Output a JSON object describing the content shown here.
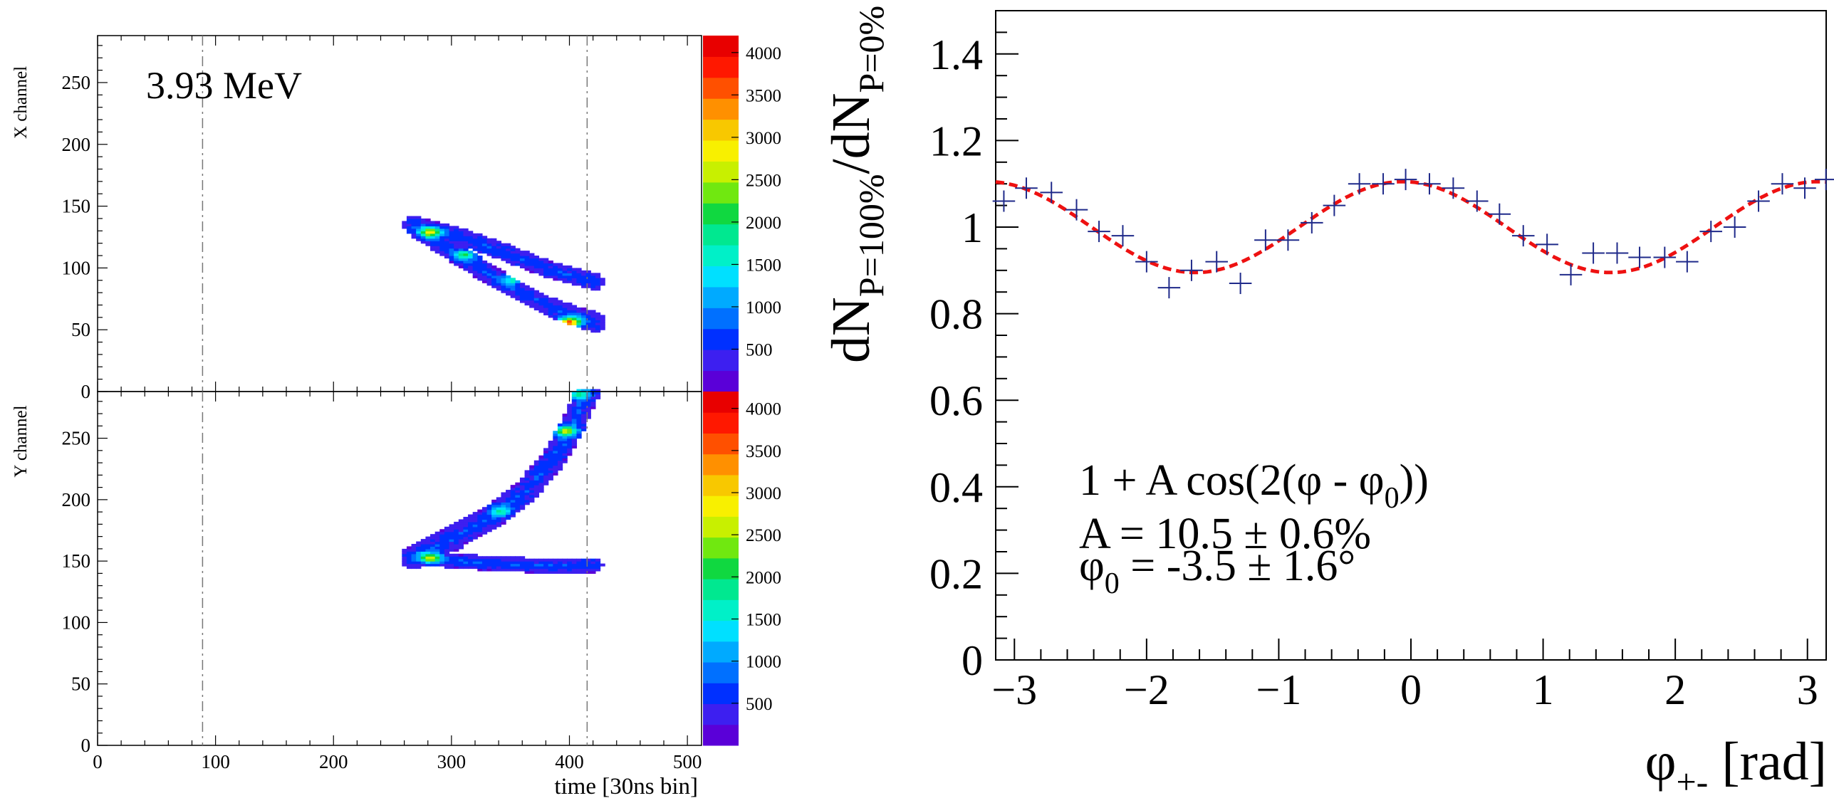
{
  "chart_data": [
    {
      "type": "heatmap",
      "panel": "top-left",
      "annotation": "3.93 MeV",
      "xlabel": "",
      "ylabel": "X channel",
      "xlim": [
        0,
        512
      ],
      "ylim": [
        0,
        288
      ],
      "x_ticks": [
        0,
        100,
        200,
        300,
        400,
        500
      ],
      "x_tick_labels": [
        "",
        "",
        "",
        "",
        "",
        ""
      ],
      "y_ticks": [
        0,
        50,
        100,
        150,
        200,
        250
      ],
      "y_tick_labels": [
        "0",
        "50",
        "100",
        "150",
        "200",
        "250"
      ],
      "dashed_vertical_lines_x": [
        89,
        415
      ],
      "color_scale": {
        "ticks": [
          500,
          1000,
          1500,
          2000,
          2500,
          3000,
          3500,
          4000
        ],
        "tick_labels": [
          "500",
          "1000",
          "1500",
          "2000",
          "2500",
          "3000",
          "3500",
          "4000"
        ],
        "max": 4200
      },
      "tracks": [
        {
          "points": [
            [
              265,
              134
            ],
            [
              300,
              126
            ],
            [
              340,
              113
            ],
            [
              380,
              98
            ],
            [
              420,
              88
            ]
          ],
          "width": 7
        },
        {
          "points": [
            [
              265,
              134
            ],
            [
              300,
              112
            ],
            [
              340,
              88
            ],
            [
              380,
              68
            ],
            [
              420,
              55
            ]
          ],
          "width": 8
        }
      ],
      "hotspots": [
        [
          280,
          128,
          2200
        ],
        [
          310,
          110,
          1400
        ],
        [
          350,
          90,
          1200
        ],
        [
          398,
          55,
          3300
        ]
      ]
    },
    {
      "type": "heatmap",
      "panel": "bottom-left",
      "xlabel": "time [30ns bin]",
      "ylabel": "Y channel",
      "xlim": [
        0,
        512
      ],
      "ylim": [
        0,
        288
      ],
      "x_ticks": [
        0,
        100,
        200,
        300,
        400,
        500
      ],
      "x_tick_labels": [
        "0",
        "100",
        "200",
        "300",
        "400",
        "500"
      ],
      "y_ticks": [
        0,
        50,
        100,
        150,
        200,
        250
      ],
      "y_tick_labels": [
        "0",
        "50",
        "100",
        "150",
        "200",
        "250"
      ],
      "dashed_vertical_lines_x": [
        89,
        415
      ],
      "color_scale": {
        "ticks": [
          500,
          1000,
          1500,
          2000,
          2500,
          3000,
          3500,
          4000
        ],
        "tick_labels": [
          "500",
          "1000",
          "1500",
          "2000",
          "2500",
          "3000",
          "3500",
          "4000"
        ],
        "max": 4200
      },
      "tracks": [
        {
          "points": [
            [
              265,
              152
            ],
            [
              320,
              148
            ],
            [
              380,
              145
            ],
            [
              420,
              146
            ]
          ],
          "width": 6
        },
        {
          "points": [
            [
              265,
              152
            ],
            [
              300,
              168
            ],
            [
              335,
              187
            ],
            [
              360,
              205
            ],
            [
              385,
              233
            ],
            [
              400,
              258
            ],
            [
              410,
              280
            ],
            [
              415,
              288
            ]
          ],
          "width": 10
        }
      ],
      "hotspots": [
        [
          280,
          152,
          2100
        ],
        [
          340,
          190,
          1100
        ],
        [
          395,
          255,
          2200
        ],
        [
          405,
          285,
          1500
        ]
      ]
    },
    {
      "type": "scatter",
      "panel": "right",
      "ylabel": "dN_{P=100%}/dN_{P=0%}",
      "xlabel": "φ_{+-} [rad]",
      "xlim": [
        -3.1416,
        3.1416
      ],
      "ylim": [
        0,
        1.5
      ],
      "x_ticks": [
        -3,
        -2,
        -1,
        0,
        1,
        2,
        3
      ],
      "x_tick_labels": [
        "−3",
        "−2",
        "−1",
        "0",
        "1",
        "2",
        "3"
      ],
      "y_ticks": [
        0,
        0.2,
        0.4,
        0.6,
        0.8,
        1,
        1.2,
        1.4
      ],
      "y_tick_labels": [
        "0",
        "0.2",
        "0.4",
        "0.6",
        "0.8",
        "1",
        "1.2",
        "1.4"
      ],
      "points": [
        {
          "x": -3.08,
          "y": 1.06
        },
        {
          "x": -2.91,
          "y": 1.09
        },
        {
          "x": -2.72,
          "y": 1.08
        },
        {
          "x": -2.53,
          "y": 1.04
        },
        {
          "x": -2.36,
          "y": 0.99
        },
        {
          "x": -2.18,
          "y": 0.98
        },
        {
          "x": -2.0,
          "y": 0.92
        },
        {
          "x": -1.83,
          "y": 0.86
        },
        {
          "x": -1.66,
          "y": 0.9
        },
        {
          "x": -1.47,
          "y": 0.92
        },
        {
          "x": -1.29,
          "y": 0.87
        },
        {
          "x": -1.1,
          "y": 0.97
        },
        {
          "x": -0.93,
          "y": 0.97
        },
        {
          "x": -0.75,
          "y": 1.01
        },
        {
          "x": -0.58,
          "y": 1.05
        },
        {
          "x": -0.39,
          "y": 1.1
        },
        {
          "x": -0.21,
          "y": 1.1
        },
        {
          "x": -0.04,
          "y": 1.11
        },
        {
          "x": 0.14,
          "y": 1.1
        },
        {
          "x": 0.32,
          "y": 1.09
        },
        {
          "x": 0.5,
          "y": 1.06
        },
        {
          "x": 0.67,
          "y": 1.03
        },
        {
          "x": 0.85,
          "y": 0.98
        },
        {
          "x": 1.03,
          "y": 0.96
        },
        {
          "x": 1.21,
          "y": 0.89
        },
        {
          "x": 1.38,
          "y": 0.94
        },
        {
          "x": 1.56,
          "y": 0.94
        },
        {
          "x": 1.73,
          "y": 0.93
        },
        {
          "x": 1.92,
          "y": 0.93
        },
        {
          "x": 2.09,
          "y": 0.92
        },
        {
          "x": 2.27,
          "y": 0.99
        },
        {
          "x": 2.45,
          "y": 1.0
        },
        {
          "x": 2.63,
          "y": 1.06
        },
        {
          "x": 2.81,
          "y": 1.1
        },
        {
          "x": 2.98,
          "y": 1.09
        },
        {
          "x": 3.14,
          "y": 1.11
        }
      ],
      "fit": {
        "function": "1 + A cos(2(φ - φ0))",
        "A": 0.105,
        "phi0": -0.0611,
        "style": "dashed",
        "color": "#ee1111"
      },
      "marker_color": "#1f2a8a",
      "annotation_lines": [
        "1 + A cos(2(φ - φ0))",
        "A = 10.5 ± 0.6%",
        "φ0 = -3.5 ± 1.6°"
      ]
    }
  ]
}
